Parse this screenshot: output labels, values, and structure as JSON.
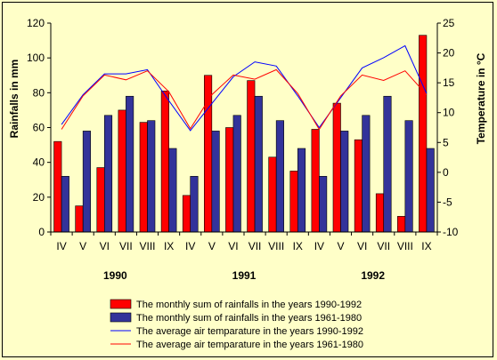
{
  "chart_data": {
    "type": "bar+line",
    "categories": [
      "IV",
      "V",
      "VI",
      "VII",
      "VIII",
      "IX",
      "IV",
      "V",
      "VI",
      "VII",
      "VIII",
      "IX",
      "IV",
      "V",
      "VI",
      "VII",
      "VIII",
      "IX"
    ],
    "years": [
      "1990",
      "1991",
      "1992"
    ],
    "ylabel_left": "Rainfalls in mm",
    "ylabel_right": "Temperature in °C",
    "ylim_left": [
      0,
      120
    ],
    "ylim_right": [
      -10,
      25
    ],
    "yticks_left": [
      "0",
      "20",
      "40",
      "60",
      "80",
      "100",
      "120"
    ],
    "yticks_right": [
      "-10",
      "-5",
      "0",
      "5",
      "10",
      "15",
      "20",
      "25"
    ],
    "grid": false,
    "legend_position": "bottom",
    "bars": [
      {
        "name": "The monthly sum of rainfalls in the years 1990-1992",
        "color": "#ff0000",
        "values": [
          52,
          15,
          37,
          70,
          63,
          81,
          21,
          90,
          60,
          87,
          43,
          35,
          59,
          74,
          53,
          22,
          9,
          113
        ]
      },
      {
        "name": "The monthly  sum of rainfalls in the years 1961-1980",
        "color": "#33339a",
        "values": [
          32,
          58,
          67,
          78,
          64,
          48,
          32,
          58,
          67,
          78,
          64,
          48,
          32,
          58,
          67,
          78,
          64,
          48
        ]
      }
    ],
    "lines": [
      {
        "name": "The average air temparature in the years 1990-1992",
        "color": "#0000ff",
        "values": [
          8,
          13,
          16.5,
          16.5,
          17.2,
          12,
          7,
          11.5,
          16,
          18.5,
          17.8,
          12.8,
          7.5,
          12.5,
          17.5,
          19.2,
          21.2,
          13.2
        ]
      },
      {
        "name": "The average air temparature in the years 1961-1980",
        "color": "#ff0000",
        "values": [
          7.2,
          12.8,
          16.3,
          15.5,
          17,
          13.5,
          7.3,
          13,
          16.3,
          15.6,
          17.2,
          13.2,
          7.2,
          12.8,
          16.3,
          15.4,
          17,
          13
        ]
      }
    ]
  }
}
